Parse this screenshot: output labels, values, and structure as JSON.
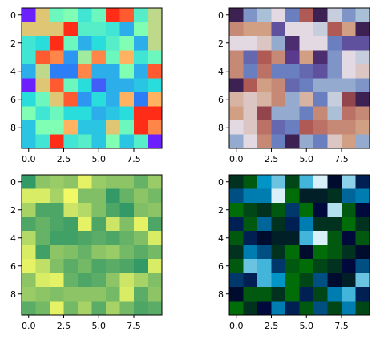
{
  "chart_data": [
    {
      "type": "heatmap",
      "colormap": "rainbow",
      "rows": 10,
      "cols": 10,
      "xticks": [
        0.0,
        2.5,
        5.0,
        7.5
      ],
      "xtick_labels": [
        "0.0",
        "2.5",
        "5.0",
        "7.5"
      ],
      "yticks": [
        0,
        2,
        4,
        6,
        8
      ],
      "ytick_labels": [
        "0",
        "2",
        "4",
        "6",
        "8"
      ],
      "values": [
        [
          0.05,
          0.75,
          0.55,
          0.6,
          0.45,
          0.55,
          0.95,
          0.9,
          0.5,
          0.7
        ],
        [
          0.75,
          0.75,
          0.75,
          0.95,
          0.5,
          0.5,
          0.45,
          0.3,
          0.6,
          0.7
        ],
        [
          0.45,
          0.4,
          0.95,
          0.55,
          0.3,
          0.4,
          0.5,
          0.6,
          0.3,
          0.7
        ],
        [
          0.45,
          0.9,
          0.85,
          0.25,
          0.65,
          0.85,
          0.55,
          0.8,
          0.45,
          0.55
        ],
        [
          0.3,
          0.7,
          0.2,
          0.2,
          0.85,
          0.3,
          0.3,
          0.6,
          0.3,
          0.9
        ],
        [
          0.05,
          0.75,
          0.9,
          0.55,
          0.4,
          0.15,
          0.3,
          0.3,
          0.35,
          0.4
        ],
        [
          0.4,
          0.55,
          0.75,
          0.9,
          0.25,
          0.4,
          0.3,
          0.8,
          0.2,
          0.8
        ],
        [
          0.6,
          0.45,
          0.55,
          0.4,
          0.4,
          0.3,
          0.35,
          0.4,
          0.95,
          0.95
        ],
        [
          0.35,
          0.6,
          0.6,
          0.8,
          0.35,
          0.35,
          0.75,
          0.55,
          0.95,
          0.85
        ],
        [
          0.35,
          0.45,
          0.95,
          0.45,
          0.5,
          0.35,
          0.6,
          0.35,
          0.5,
          0.05
        ]
      ]
    },
    {
      "type": "heatmap",
      "colormap": "twilight",
      "rows": 10,
      "cols": 10,
      "xticks": [
        0.0,
        2.5,
        5.0,
        7.5
      ],
      "xtick_labels": [
        "0.0",
        "2.5",
        "5.0",
        "7.5"
      ],
      "yticks": [
        0,
        2,
        4,
        6,
        8
      ],
      "ytick_labels": [
        "0",
        "2",
        "4",
        "6",
        "8"
      ],
      "values": [
        [
          0.05,
          0.35,
          0.45,
          0.55,
          0.3,
          0.85,
          0.05,
          0.5,
          0.35,
          0.45
        ],
        [
          0.75,
          0.7,
          0.7,
          0.2,
          0.55,
          0.55,
          0.5,
          0.85,
          0.7,
          0.05
        ],
        [
          0.55,
          0.55,
          0.6,
          0.4,
          0.1,
          0.55,
          0.55,
          0.3,
          0.2,
          0.2
        ],
        [
          0.75,
          0.25,
          0.85,
          0.75,
          0.15,
          0.7,
          0.1,
          0.35,
          0.55,
          0.5
        ],
        [
          0.75,
          0.3,
          0.8,
          0.3,
          0.3,
          0.25,
          0.2,
          0.35,
          0.55,
          0.6
        ],
        [
          0.05,
          0.85,
          0.7,
          0.75,
          0.25,
          0.3,
          0.4,
          0.4,
          0.4,
          0.35
        ],
        [
          0.65,
          0.6,
          0.65,
          0.75,
          0.4,
          0.65,
          0.3,
          0.5,
          0.9,
          0.05
        ],
        [
          0.7,
          0.6,
          0.9,
          0.4,
          0.4,
          0.3,
          0.75,
          0.45,
          0.8,
          0.75
        ],
        [
          0.55,
          0.6,
          0.8,
          0.25,
          0.3,
          0.85,
          0.8,
          0.75,
          0.75,
          0.7
        ],
        [
          0.4,
          0.55,
          0.75,
          0.3,
          0.05,
          0.4,
          0.3,
          0.6,
          0.7,
          0.4
        ]
      ]
    },
    {
      "type": "heatmap",
      "colormap": "summer",
      "rows": 10,
      "cols": 10,
      "xticks": [
        0.0,
        2.5,
        5.0,
        7.5
      ],
      "xtick_labels": [
        "0.0",
        "2.5",
        "5.0",
        "7.5"
      ],
      "yticks": [
        0,
        2,
        4,
        6,
        8
      ],
      "ytick_labels": [
        "0",
        "2",
        "4",
        "6",
        "8"
      ],
      "values": [
        [
          0.2,
          0.55,
          0.6,
          0.55,
          0.9,
          0.6,
          0.55,
          0.55,
          0.4,
          0.6
        ],
        [
          0.85,
          0.85,
          0.65,
          0.95,
          0.5,
          0.5,
          0.2,
          0.4,
          0.55,
          0.45
        ],
        [
          0.65,
          0.3,
          0.3,
          0.8,
          0.7,
          0.5,
          0.3,
          0.2,
          0.5,
          0.55
        ],
        [
          0.3,
          0.4,
          0.3,
          0.25,
          0.9,
          0.3,
          0.8,
          0.5,
          0.9,
          0.3
        ],
        [
          0.7,
          0.4,
          0.25,
          0.25,
          0.3,
          0.35,
          0.3,
          0.4,
          0.5,
          0.85
        ],
        [
          0.85,
          0.25,
          0.55,
          0.5,
          0.4,
          0.55,
          0.6,
          0.45,
          0.35,
          0.45
        ],
        [
          0.9,
          0.75,
          0.5,
          0.35,
          0.45,
          0.3,
          0.35,
          0.3,
          0.2,
          0.85
        ],
        [
          0.55,
          0.85,
          0.9,
          0.4,
          0.3,
          0.35,
          0.55,
          0.8,
          0.65,
          0.5
        ],
        [
          0.6,
          0.55,
          0.5,
          0.55,
          0.55,
          0.55,
          0.45,
          0.85,
          0.35,
          0.55
        ],
        [
          0.35,
          0.45,
          0.9,
          0.45,
          0.65,
          0.35,
          0.65,
          0.45,
          0.3,
          0.35
        ]
      ]
    },
    {
      "type": "heatmap",
      "colormap": "ocean",
      "rows": 10,
      "cols": 10,
      "xticks": [
        0.0,
        2.5,
        5.0,
        7.5
      ],
      "xtick_labels": [
        "0.0",
        "2.5",
        "5.0",
        "7.5"
      ],
      "yticks": [
        0,
        2,
        4,
        6,
        8
      ],
      "ytick_labels": [
        "0",
        "2",
        "4",
        "6",
        "8"
      ],
      "values": [
        [
          0.2,
          0.1,
          0.65,
          0.8,
          0.15,
          0.75,
          0.95,
          0.3,
          0.85,
          0.4
        ],
        [
          0.5,
          0.6,
          0.6,
          0.95,
          0.05,
          0.25,
          0.25,
          0.2,
          0.55,
          0.6
        ],
        [
          0.05,
          0.15,
          0.2,
          0.1,
          0.45,
          0.05,
          0.35,
          0.9,
          0.1,
          0.35
        ],
        [
          0.4,
          0.1,
          0.55,
          0.2,
          0.4,
          0.6,
          0.2,
          0.2,
          0.05,
          0.2
        ],
        [
          0.1,
          0.4,
          0.3,
          0.25,
          0.25,
          0.75,
          0.95,
          0.1,
          0.35,
          0.1
        ],
        [
          0.2,
          0.6,
          0.5,
          0.2,
          0.05,
          0.3,
          0.05,
          0.1,
          0.2,
          0.3
        ],
        [
          0.1,
          0.8,
          0.75,
          0.45,
          0.1,
          0.05,
          0.15,
          0.2,
          0.35,
          0.5
        ],
        [
          0.45,
          0.4,
          0.75,
          0.65,
          0.05,
          0.15,
          0.5,
          0.3,
          0.25,
          0.8
        ],
        [
          0.3,
          0.1,
          0.1,
          0.2,
          0.05,
          0.4,
          0.15,
          0.6,
          0.75,
          0.4
        ],
        [
          0.05,
          0.2,
          0.35,
          0.6,
          0.4,
          0.1,
          0.5,
          0.15,
          0.6,
          0.15
        ]
      ]
    }
  ]
}
